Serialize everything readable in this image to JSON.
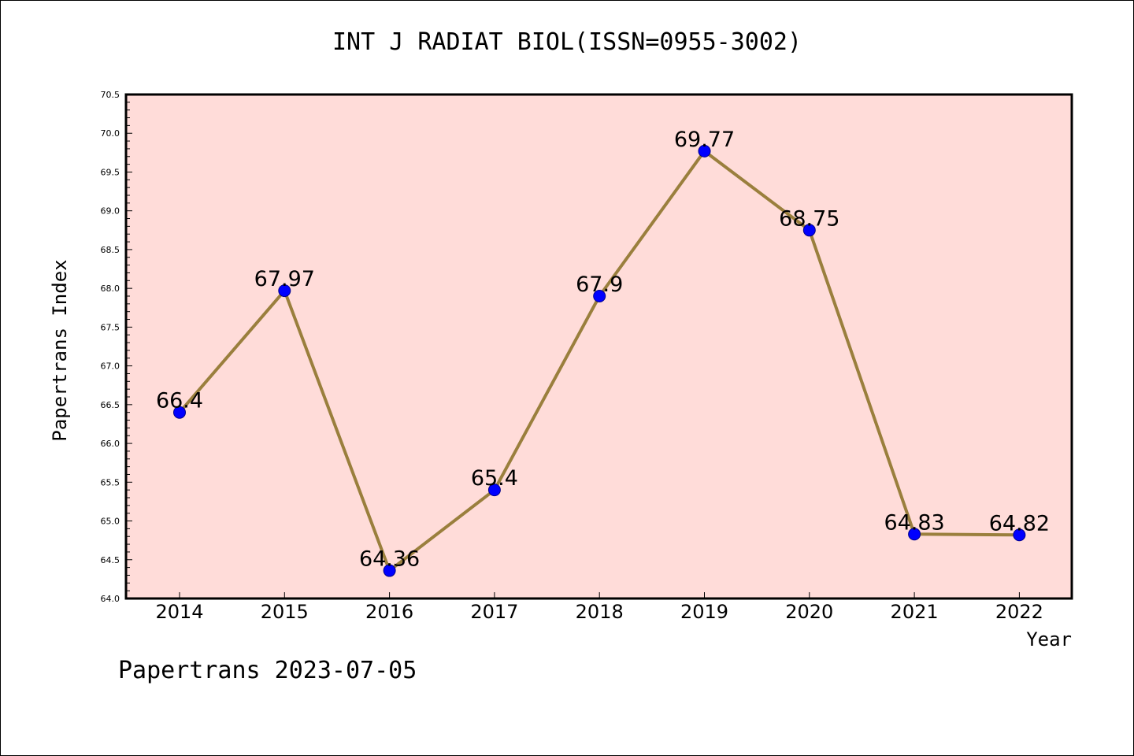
{
  "chart_data": {
    "type": "line",
    "title": "INT J RADIAT BIOL(ISSN=0955-3002)",
    "xlabel": "Year",
    "ylabel": "Papertrans Index",
    "footer": "Papertrans 2023-07-05",
    "categories": [
      "2014",
      "2015",
      "2016",
      "2017",
      "2018",
      "2019",
      "2020",
      "2021",
      "2022"
    ],
    "values": [
      66.4,
      67.97,
      64.36,
      65.4,
      67.9,
      69.77,
      68.75,
      64.83,
      64.82
    ],
    "data_labels": [
      "66.4",
      "67.97",
      "64.36",
      "65.4",
      "67.9",
      "69.77",
      "68.75",
      "64.83",
      "64.82"
    ],
    "ylim": [
      64.0,
      70.5
    ],
    "ytick_step": 0.5,
    "ytick_labels": [
      "64.0",
      "64.5",
      "65.0",
      "65.5",
      "66.0",
      "66.5",
      "67.0",
      "67.5",
      "68.0",
      "68.5",
      "69.0",
      "69.5",
      "70.0",
      "70.5"
    ],
    "grid": false,
    "legend": "none",
    "colors": {
      "plot_background": "#ffdcd9",
      "line": "#9a7f3d",
      "marker_fill": "#0000ff",
      "marker_stroke": "#00008b"
    }
  }
}
